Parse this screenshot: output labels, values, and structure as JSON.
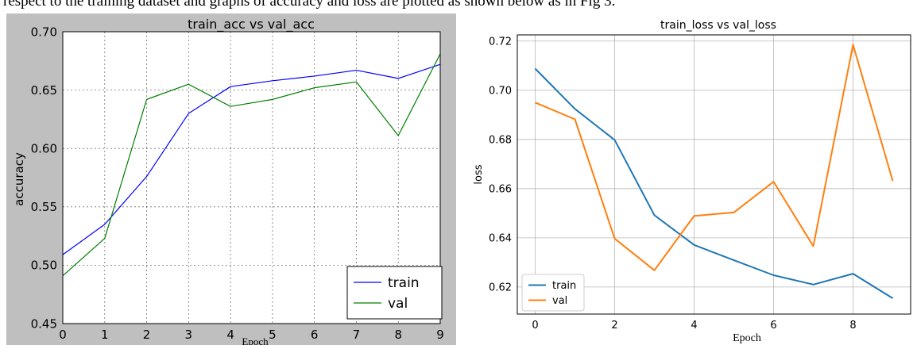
{
  "caption": "respect to the training dataset and graphs of accuracy and loss are plotted as shown below as in Fig 3.",
  "colors": {
    "left_bg": "#bfbfbf",
    "left_train": "#0000ff",
    "left_val": "#008000",
    "right_train": "#1f77b4",
    "right_val": "#ff7f0e",
    "grid": "#b0b0b0"
  },
  "chart_data": [
    {
      "type": "line",
      "title": "train_acc vs val_acc",
      "xlabel": "Epoch",
      "ylabel": "accuracy",
      "xlim": [
        0,
        9
      ],
      "ylim": [
        0.45,
        0.7
      ],
      "x_ticks": [
        "0",
        "1",
        "2",
        "3",
        "4",
        "5",
        "6",
        "7",
        "8",
        "9"
      ],
      "y_ticks": [
        "0.45",
        "0.50",
        "0.55",
        "0.60",
        "0.65",
        "0.70"
      ],
      "grid": true,
      "legend_position": "lower-right",
      "x": [
        0,
        1,
        2,
        3,
        4,
        5,
        6,
        7,
        8,
        9
      ],
      "series": [
        {
          "name": "train",
          "values": [
            0.509,
            0.535,
            0.576,
            0.63,
            0.653,
            0.658,
            0.662,
            0.667,
            0.66,
            0.672
          ]
        },
        {
          "name": "val",
          "values": [
            0.491,
            0.523,
            0.642,
            0.655,
            0.636,
            0.642,
            0.652,
            0.657,
            0.611,
            0.681
          ]
        }
      ]
    },
    {
      "type": "line",
      "title": "train_loss vs val_loss",
      "xlabel": "Epoch",
      "ylabel": "loss",
      "xlim": [
        -0.45,
        9.45
      ],
      "ylim": [
        0.609,
        0.7225
      ],
      "x_ticks": [
        "0",
        "2",
        "4",
        "6",
        "8"
      ],
      "y_ticks": [
        "0.62",
        "0.64",
        "0.66",
        "0.68",
        "0.70",
        "0.72"
      ],
      "grid": true,
      "legend_position": "lower-left",
      "x": [
        0,
        1,
        2,
        3,
        4,
        5,
        6,
        7,
        8,
        9
      ],
      "series": [
        {
          "name": "train",
          "values": [
            0.7088,
            0.6924,
            0.6798,
            0.6492,
            0.6371,
            0.6309,
            0.6248,
            0.621,
            0.6254,
            0.6154
          ]
        },
        {
          "name": "val",
          "values": [
            0.695,
            0.6882,
            0.6397,
            0.6268,
            0.6489,
            0.6503,
            0.6628,
            0.6366,
            0.7185,
            0.6631
          ]
        }
      ]
    }
  ]
}
